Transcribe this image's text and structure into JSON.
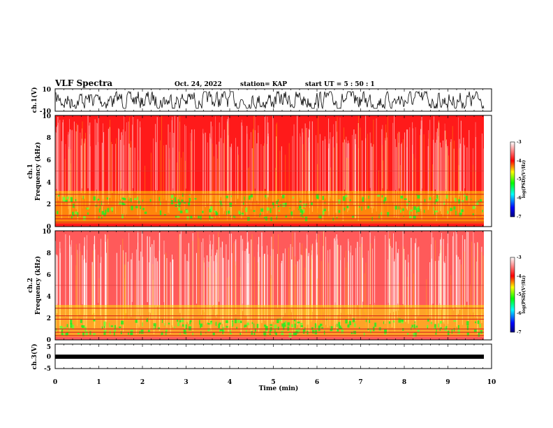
{
  "chart_data": [
    {
      "type": "line",
      "panel": "ch1-waveform",
      "ylabel": "ch.1(V)",
      "ylim": [
        -10,
        10
      ],
      "yticks": [
        "10",
        "-10"
      ],
      "xlim": [
        0,
        10
      ],
      "xlabel": "",
      "series": [
        {
          "values": []
        }
      ]
    },
    {
      "type": "heatmap",
      "panel": "ch1-spectrogram",
      "ylabel": "ch.1\nFrequency (kHz)",
      "ylim": [
        0,
        10
      ],
      "yticks": [
        "0",
        "2",
        "4",
        "6",
        "8",
        "10"
      ],
      "xlim": [
        0,
        10
      ],
      "colorbar": {
        "label": "log(PSD)(V²/Hz)",
        "range": [
          -7,
          -3
        ],
        "ticks": [
          "-3",
          "-4",
          "-5",
          "-6",
          "-7"
        ],
        "colors": [
          "#000080",
          "#0000ff",
          "#00ffff",
          "#00ff00",
          "#ffff00",
          "#ff0000",
          "#ffffff"
        ]
      }
    },
    {
      "type": "heatmap",
      "panel": "ch2-spectrogram",
      "ylabel": "ch.2\nFrequency (kHz)",
      "ylim": [
        0,
        10
      ],
      "yticks": [
        "0",
        "2",
        "4",
        "6",
        "8",
        "10"
      ],
      "xlim": [
        0,
        10
      ],
      "colorbar": {
        "label": "log(PSD)(V²/Hz)",
        "range": [
          -7,
          -3
        ],
        "ticks": [
          "-3",
          "-4",
          "-5",
          "-6",
          "-7"
        ],
        "colors": [
          "#000080",
          "#0000ff",
          "#00ffff",
          "#00ff00",
          "#ffff00",
          "#ff0000",
          "#ffffff"
        ]
      }
    },
    {
      "type": "line",
      "panel": "ch3-waveform",
      "ylabel": "ch.3(V)",
      "ylim": [
        -5,
        5
      ],
      "yticks": [
        "5",
        "0",
        "-5"
      ],
      "xlim": [
        0,
        10
      ],
      "xticks": [
        "0",
        "1",
        "2",
        "3",
        "4",
        "5",
        "6",
        "7",
        "8",
        "9",
        "10"
      ],
      "xlabel": "Time (min)"
    }
  ],
  "header": {
    "title": "VLF Spectra",
    "date": "Oct. 24, 2022",
    "station": "station= KAP",
    "start": "start UT =  5 : 50 : 1"
  }
}
